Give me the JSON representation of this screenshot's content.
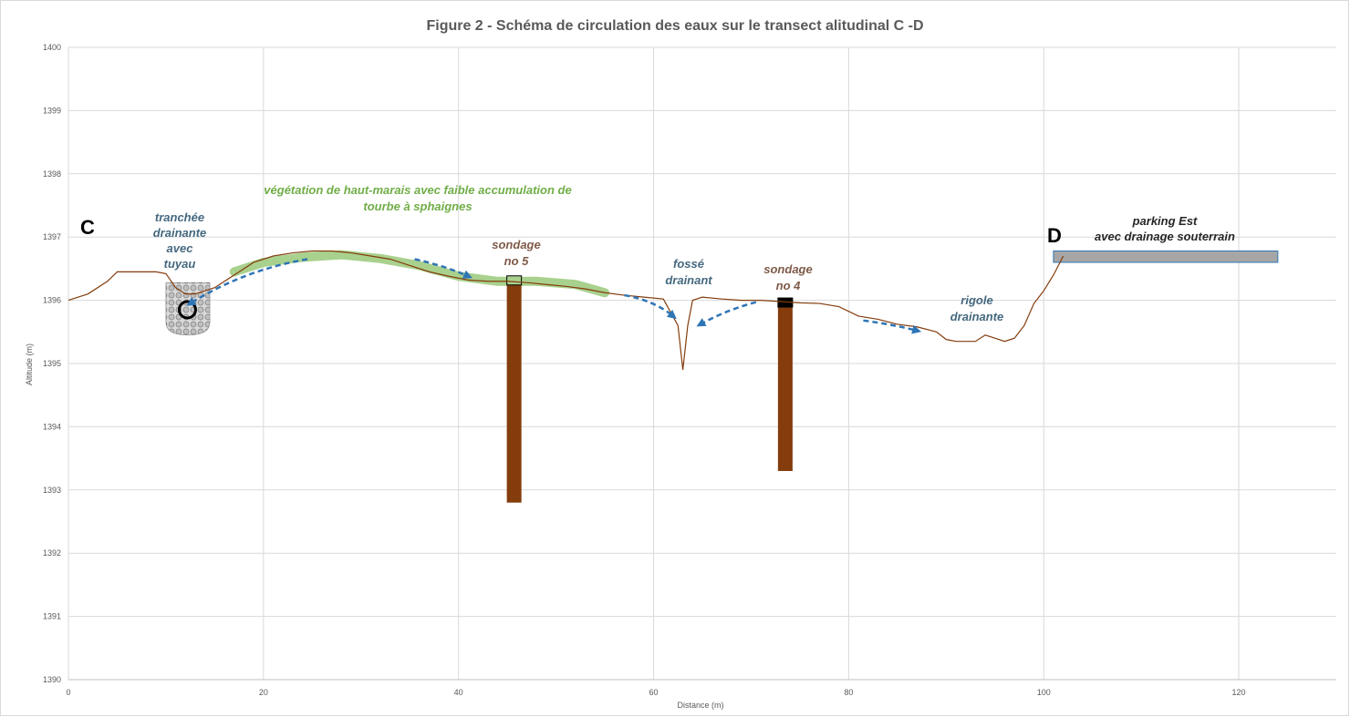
{
  "chart_data": {
    "type": "line",
    "title": "Figure 2 - Schéma de circulation des eaux sur le transect  alitudinal C -D",
    "xlabel": "Distance (m)",
    "ylabel": "Altitude (m)",
    "xlim": [
      0,
      130
    ],
    "ylim": [
      1390,
      1400
    ],
    "x_ticks": [
      0,
      20,
      40,
      60,
      80,
      100,
      120
    ],
    "y_ticks": [
      1390,
      1391,
      1392,
      1393,
      1394,
      1395,
      1396,
      1397,
      1398,
      1399,
      1400
    ],
    "grid": true,
    "series": [
      {
        "color": "#843c0c",
        "x": [
          0,
          2,
          4,
          5,
          7,
          9,
          10,
          11,
          12,
          13,
          15,
          17,
          19,
          21,
          23,
          25,
          27,
          29,
          31,
          33,
          35,
          37,
          39,
          41,
          43,
          45,
          47,
          49,
          51,
          53,
          55,
          57,
          59,
          61,
          62.5,
          63,
          63.5,
          64,
          65,
          67,
          69,
          71,
          73,
          75,
          77,
          79,
          81,
          83,
          85,
          87,
          89,
          90,
          91,
          93,
          94,
          95,
          96,
          97,
          98,
          99,
          100,
          101,
          102
        ],
        "y": [
          1396.0,
          1396.1,
          1396.3,
          1396.45,
          1396.45,
          1396.45,
          1396.42,
          1396.2,
          1396.1,
          1396.1,
          1396.2,
          1396.4,
          1396.6,
          1396.7,
          1396.75,
          1396.78,
          1396.78,
          1396.75,
          1396.7,
          1396.65,
          1396.55,
          1396.45,
          1396.38,
          1396.32,
          1396.3,
          1396.3,
          1396.28,
          1396.25,
          1396.22,
          1396.18,
          1396.12,
          1396.08,
          1396.05,
          1396.02,
          1395.6,
          1394.9,
          1395.6,
          1396.0,
          1396.05,
          1396.02,
          1396.0,
          1396.0,
          1395.98,
          1395.96,
          1395.95,
          1395.9,
          1395.75,
          1395.7,
          1395.62,
          1395.58,
          1395.5,
          1395.38,
          1395.35,
          1395.35,
          1395.45,
          1395.4,
          1395.35,
          1395.4,
          1395.6,
          1395.95,
          1396.15,
          1396.4,
          1396.7
        ]
      }
    ],
    "annotations": {
      "point_c": "C",
      "point_d": "D",
      "vegetation": [
        "végétation de haut-marais avec faible accumulation de",
        "tourbe à sphaignes"
      ],
      "trench": [
        "tranchée",
        "drainante",
        "avec",
        "tuyau"
      ],
      "sondage5": [
        "sondage",
        "no 5"
      ],
      "fosse": [
        "fossé",
        "drainant"
      ],
      "sondage4": [
        "sondage",
        "no 4"
      ],
      "rigole": [
        "rigole",
        "drainante"
      ],
      "parking": [
        "parking Est",
        "avec drainage souterrain"
      ]
    },
    "features": {
      "sondage5": {
        "x": 45.7,
        "top": 1396.3,
        "bottom": 1392.8
      },
      "sondage4": {
        "x": 73.5,
        "top": 1395.95,
        "bottom": 1393.3
      },
      "parking": {
        "x_start": 101,
        "x_end": 124,
        "top": 1396.78,
        "bottom": 1396.6
      },
      "vegetation": {
        "x": [
          17,
          20,
          24,
          28,
          32,
          36,
          40,
          44,
          48,
          52,
          55
        ],
        "y": [
          1396.45,
          1396.6,
          1396.68,
          1396.72,
          1396.66,
          1396.55,
          1396.38,
          1396.3,
          1396.3,
          1396.25,
          1396.12
        ]
      },
      "trench": {
        "x_start": 10,
        "x_end": 14.5,
        "top": 1396.28,
        "bottom": 1395.45,
        "pipe_x": 12.2,
        "pipe_y": 1395.85
      }
    },
    "colors": {
      "ground": "#843c0c",
      "sondage": "#843c0c",
      "vegetation": "#a9d18e",
      "arrow": "#2e75b6",
      "blue_text": "#44687f",
      "green_text": "#70ad47",
      "brown_text": "#7f5a48",
      "parking": "#a6a6a6",
      "parking_border": "#2e75b6"
    }
  }
}
